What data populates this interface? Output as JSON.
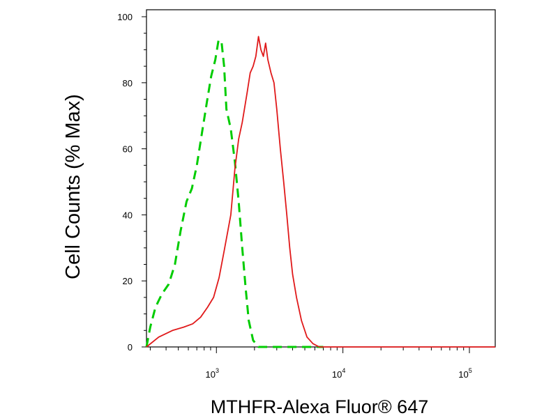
{
  "chart_data": {
    "type": "line",
    "title": "",
    "xlabel": "MTHFR-Alexa Fluor® 647",
    "ylabel": "Cell Counts (% Max)",
    "x_scale": "log",
    "xlim": [
      280,
      160000
    ],
    "ylim": [
      0,
      100
    ],
    "y_ticks": [
      "0",
      "20",
      "40",
      "60",
      "80",
      "100"
    ],
    "x_ticks": [
      {
        "base": "10",
        "exp": "3",
        "value": 1000
      },
      {
        "base": "10",
        "exp": "4",
        "value": 10000
      },
      {
        "base": "10",
        "exp": "5",
        "value": 100000
      }
    ],
    "grid": false,
    "legend": "none",
    "series": [
      {
        "color": "#00cc00",
        "dash": "dashed",
        "points": [
          [
            280,
            0
          ],
          [
            300,
            6
          ],
          [
            330,
            12
          ],
          [
            370,
            16
          ],
          [
            420,
            19
          ],
          [
            470,
            25
          ],
          [
            520,
            35
          ],
          [
            580,
            44
          ],
          [
            640,
            48
          ],
          [
            700,
            55
          ],
          [
            770,
            65
          ],
          [
            840,
            74
          ],
          [
            910,
            82
          ],
          [
            980,
            87
          ],
          [
            1040,
            93
          ],
          [
            1100,
            92
          ],
          [
            1150,
            85
          ],
          [
            1200,
            72
          ],
          [
            1300,
            66
          ],
          [
            1400,
            56
          ],
          [
            1500,
            44
          ],
          [
            1600,
            30
          ],
          [
            1700,
            18
          ],
          [
            1800,
            8
          ],
          [
            1950,
            2
          ],
          [
            2150,
            0
          ],
          [
            3000,
            0
          ],
          [
            5000,
            0
          ],
          [
            7000,
            0
          ]
        ]
      },
      {
        "color": "#e0191a",
        "dash": "solid",
        "points": [
          [
            280,
            0
          ],
          [
            350,
            3
          ],
          [
            450,
            5
          ],
          [
            550,
            6
          ],
          [
            650,
            7
          ],
          [
            750,
            9
          ],
          [
            850,
            12
          ],
          [
            950,
            15
          ],
          [
            1050,
            21
          ],
          [
            1150,
            29
          ],
          [
            1300,
            40
          ],
          [
            1400,
            54
          ],
          [
            1500,
            63
          ],
          [
            1600,
            68
          ],
          [
            1750,
            77
          ],
          [
            1850,
            83
          ],
          [
            1950,
            85
          ],
          [
            2050,
            88
          ],
          [
            2150,
            94
          ],
          [
            2250,
            90
          ],
          [
            2350,
            88
          ],
          [
            2450,
            92
          ],
          [
            2550,
            87
          ],
          [
            2700,
            83
          ],
          [
            2850,
            80
          ],
          [
            3000,
            72
          ],
          [
            3200,
            60
          ],
          [
            3400,
            50
          ],
          [
            3600,
            40
          ],
          [
            3800,
            30
          ],
          [
            4000,
            22
          ],
          [
            4300,
            15
          ],
          [
            4700,
            8
          ],
          [
            5200,
            3
          ],
          [
            5800,
            1
          ],
          [
            6500,
            0
          ],
          [
            10000,
            0
          ],
          [
            30000,
            0
          ],
          [
            100000,
            0
          ],
          [
            160000,
            0
          ]
        ]
      }
    ]
  }
}
